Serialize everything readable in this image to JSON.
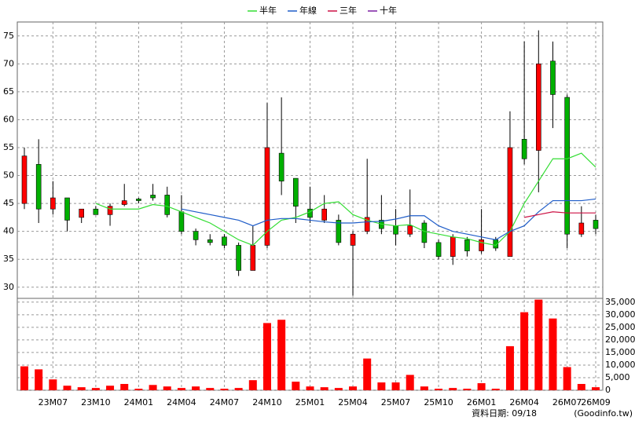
{
  "chart_data": [
    {
      "type": "candlestick",
      "categories": [
        null,
        null,
        "23M07",
        null,
        null,
        "23M10",
        null,
        null,
        "24M01",
        null,
        null,
        "24M04",
        null,
        null,
        "24M07",
        null,
        null,
        "24M10",
        null,
        null,
        "25M01",
        null,
        null,
        "25M04",
        null,
        null,
        "25M07",
        null,
        null,
        "25M10",
        null,
        null,
        "26M01",
        null,
        null,
        "26M04",
        null,
        null,
        "26M07",
        null,
        "26M09"
      ],
      "open": [
        45,
        52,
        44,
        46,
        42.5,
        44,
        43,
        44.8,
        45.8,
        46.5,
        46.5,
        43.5,
        40,
        38.5,
        39,
        37.5,
        33,
        37.5,
        54,
        49.5,
        44,
        42,
        42,
        37.5,
        40,
        42,
        41,
        39.5,
        41.5,
        38,
        35.5,
        38.5,
        36.5,
        38.5,
        35.5,
        56.5,
        54.5,
        70.5,
        64,
        39.5,
        42
      ],
      "high": [
        55,
        56.5,
        49,
        46,
        44,
        44.5,
        45,
        48.5,
        46,
        48.5,
        48,
        46.5,
        40.5,
        39.5,
        39.5,
        38,
        41,
        63,
        64,
        49.5,
        48,
        46.5,
        43,
        40,
        53,
        46.5,
        44,
        47.5,
        42,
        38.5,
        39.5,
        39,
        44,
        39,
        61.5,
        74,
        76,
        74,
        64.5,
        44.5,
        43
      ],
      "low": [
        44,
        41.5,
        43,
        40,
        41.5,
        43,
        41,
        44.5,
        45,
        45.5,
        42.5,
        39.5,
        37.5,
        37.5,
        37,
        32,
        33,
        37,
        46.5,
        41.5,
        41.5,
        41.5,
        37.5,
        28.5,
        39.5,
        39.5,
        37.5,
        39,
        37,
        35,
        34,
        35.5,
        36,
        36.5,
        35.5,
        52,
        47,
        58.5,
        37,
        39,
        39.5
      ],
      "close": [
        53.5,
        44,
        46,
        42,
        44,
        43,
        44.5,
        45.5,
        45.5,
        46,
        43,
        40,
        38.5,
        38,
        37.5,
        33,
        37.5,
        55,
        49,
        44.5,
        42.5,
        44,
        38,
        39.5,
        42.5,
        40.5,
        39.5,
        41,
        38,
        35.5,
        39,
        36.5,
        38.5,
        37,
        55,
        53,
        70,
        64.5,
        39.5,
        41.5,
        40.5
      ],
      "up_color": "#ff0000",
      "down_color": "#00b000",
      "series": [
        {
          "name": "半年",
          "color": "#33dd33",
          "values": [
            null,
            null,
            null,
            null,
            null,
            45,
            44,
            44,
            44,
            44.8,
            44.5,
            43.5,
            42.5,
            41.5,
            40,
            38.5,
            37.5,
            40,
            42,
            42.5,
            43.5,
            45,
            45.3,
            43,
            42,
            41.3,
            41,
            41.2,
            40,
            39.5,
            39,
            38.7,
            38,
            37.5,
            40,
            45,
            49,
            53,
            53,
            54,
            51.5
          ]
        },
        {
          "name": "年線",
          "color": "#1e5cc8",
          "values": [
            null,
            null,
            null,
            null,
            null,
            null,
            null,
            null,
            null,
            null,
            null,
            44,
            43.5,
            43,
            42.5,
            42,
            41,
            42,
            42.3,
            42.3,
            42,
            41.7,
            41.5,
            41.5,
            41.7,
            41.8,
            42.2,
            42.8,
            42.8,
            41,
            40,
            39.5,
            39,
            38.5,
            40,
            41,
            43.5,
            45.5,
            45.5,
            45.5,
            45.8
          ]
        },
        {
          "name": "三年",
          "color": "#cc1144",
          "values": [
            null,
            null,
            null,
            null,
            null,
            null,
            null,
            null,
            null,
            null,
            null,
            null,
            null,
            null,
            null,
            null,
            null,
            null,
            null,
            null,
            null,
            null,
            null,
            null,
            null,
            null,
            null,
            null,
            null,
            null,
            null,
            null,
            null,
            null,
            null,
            42.5,
            43,
            43.5,
            43.3,
            43.3,
            43.3
          ]
        },
        {
          "name": "十年",
          "color": "#7a1fa2",
          "values": [
            null,
            null,
            null,
            null,
            null,
            null,
            null,
            null,
            null,
            null,
            null,
            null,
            null,
            null,
            null,
            null,
            null,
            null,
            null,
            null,
            null,
            null,
            null,
            null,
            null,
            null,
            null,
            null,
            null,
            null,
            null,
            null,
            null,
            null,
            null,
            null,
            null,
            null,
            null,
            null,
            null
          ]
        }
      ],
      "ylim": [
        28,
        77.5
      ],
      "yticks": [
        30,
        35,
        40,
        45,
        50,
        55,
        60,
        65,
        70,
        75
      ],
      "grid": true
    },
    {
      "type": "bar",
      "color": "#ff0000",
      "values": [
        9500,
        8300,
        4300,
        1800,
        1200,
        900,
        1800,
        2500,
        600,
        2100,
        1500,
        900,
        1500,
        900,
        600,
        900,
        4000,
        26700,
        28000,
        3400,
        1500,
        1200,
        900,
        1500,
        12600,
        3100,
        3100,
        6100,
        1500,
        600,
        900,
        600,
        2800,
        600,
        17500,
        31000,
        36000,
        28500,
        9200,
        2500,
        1200
      ],
      "ylim": [
        0,
        36500
      ],
      "yticks": [
        0,
        {
          "value": 5000,
          "label": "5,000"
        },
        {
          "value": 10000,
          "label": "10,000"
        },
        {
          "value": 15000,
          "label": "15,000"
        },
        {
          "value": 20000,
          "label": "20,000"
        },
        {
          "value": 25000,
          "label": "25,000"
        },
        {
          "value": 30000,
          "label": "30,000"
        },
        {
          "value": 35000,
          "label": "35,000"
        }
      ],
      "grid": true
    }
  ],
  "footer": {
    "date_note": "資料日期: 09/18",
    "source": "(Goodinfo.tw)"
  }
}
